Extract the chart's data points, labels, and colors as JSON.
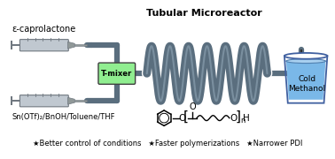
{
  "bg_color": "#ffffff",
  "tube_color": "#5a6e7e",
  "tube_lw": 4.5,
  "syringe_body_color": "#c0c8d0",
  "syringe_dark": "#707880",
  "syringe_needle_color": "#909898",
  "tmixer_color": "#90ee90",
  "tmixer_edge": "#404040",
  "beaker_fill": "#7ab8e8",
  "beaker_edge": "#4060a0",
  "text_color": "#000000",
  "label_top": "ε-caprolactone",
  "label_bottom": "Sn(OTf)₂/BnOH/Toluene/THF",
  "label_reactor": "Tubular Microreactor",
  "label_cold": "Cold\nMethanol",
  "label_tmixer": "T-mixer",
  "bullets": "★Better control of conditions   ★Faster polymerizations   ★Narrower PDI"
}
